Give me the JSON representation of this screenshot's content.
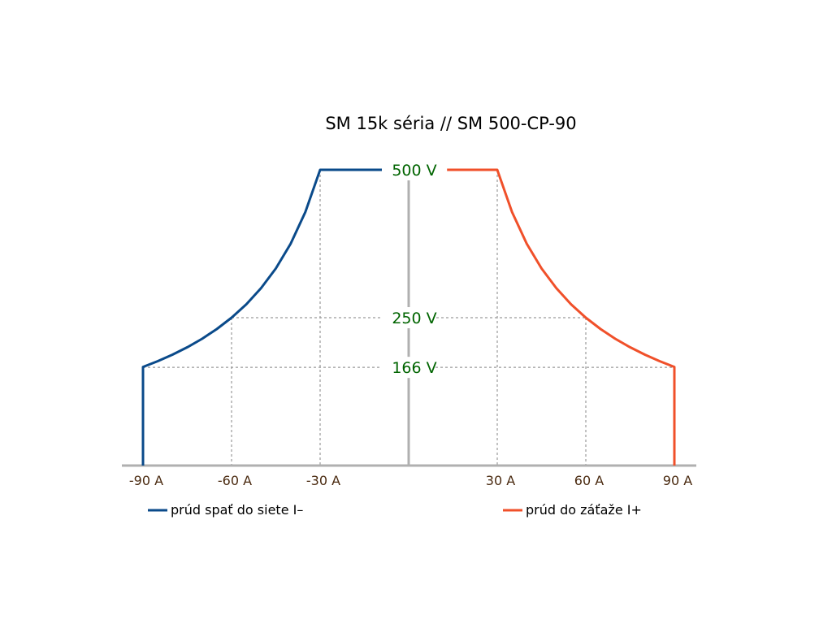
{
  "chart_data": {
    "type": "line",
    "title": "SM 15k séria // SM 500-CP-90",
    "xlabel": "",
    "ylabel": "",
    "xlim": [
      -90,
      90
    ],
    "ylim": [
      0,
      500
    ],
    "grid": "dashed reference lines only",
    "legend": "bottom",
    "x_ticks": [
      {
        "value": -90,
        "label": "-90 A"
      },
      {
        "value": -60,
        "label": "-60 A"
      },
      {
        "value": -30,
        "label": "-30 A"
      },
      {
        "value": 30,
        "label": "30 A"
      },
      {
        "value": 60,
        "label": "60 A"
      },
      {
        "value": 90,
        "label": "90 A"
      }
    ],
    "y_ticks": [
      {
        "value": 500,
        "label": "500 V"
      },
      {
        "value": 250,
        "label": "250 V"
      },
      {
        "value": 166,
        "label": "166 V"
      }
    ],
    "series": [
      {
        "name": "prúd spať do siete I–",
        "color": "#0a4a8a",
        "points": [
          [
            -30,
            500
          ],
          [
            -9,
            500
          ],
          [
            -30,
            500
          ],
          [
            -35,
            428.6
          ],
          [
            -40,
            375
          ],
          [
            -45,
            333.3
          ],
          [
            -50,
            300
          ],
          [
            -55,
            272.7
          ],
          [
            -60,
            250
          ],
          [
            -65,
            230.8
          ],
          [
            -70,
            214.3
          ],
          [
            -75,
            200
          ],
          [
            -80,
            187.5
          ],
          [
            -85,
            176.5
          ],
          [
            -90,
            166.7
          ],
          [
            -90,
            0
          ]
        ]
      },
      {
        "name": "prúd do záťaže I+",
        "color": "#f0502a",
        "points": [
          [
            13,
            500
          ],
          [
            30,
            500
          ],
          [
            35,
            428.6
          ],
          [
            40,
            375
          ],
          [
            45,
            333.3
          ],
          [
            50,
            300
          ],
          [
            55,
            272.7
          ],
          [
            60,
            250
          ],
          [
            65,
            230.8
          ],
          [
            70,
            214.3
          ],
          [
            75,
            200
          ],
          [
            80,
            187.5
          ],
          [
            85,
            176.5
          ],
          [
            90,
            166.7
          ],
          [
            90,
            0
          ]
        ]
      }
    ],
    "colors": {
      "axis": "#b0b0b0",
      "reference": "#9a9a9a",
      "y_label": "#006400",
      "x_label": "#4a2a10"
    }
  }
}
